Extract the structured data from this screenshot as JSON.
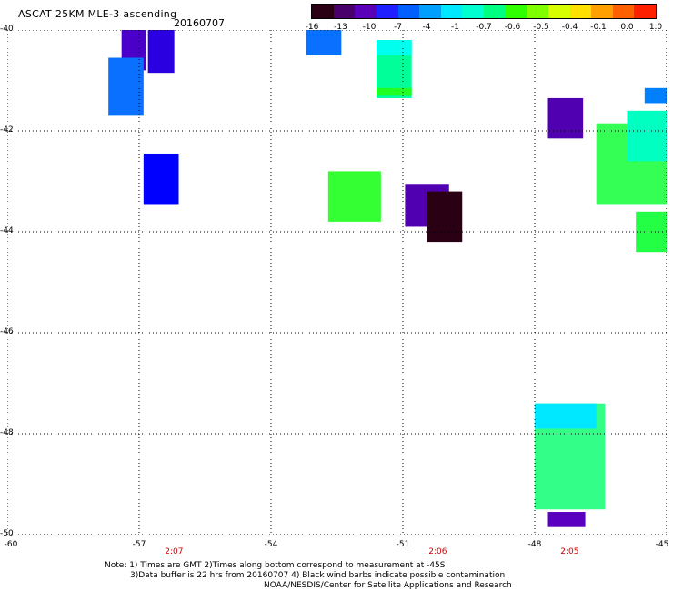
{
  "header": {
    "title": "ASCAT 25KM MLE-3 ascending",
    "date": "20160707"
  },
  "colorbar": {
    "colors": [
      "#2a0014",
      "#4a006a",
      "#5a00b8",
      "#2020ff",
      "#0060ff",
      "#00a0ff",
      "#00e8ff",
      "#00ffd0",
      "#00ff80",
      "#30ff00",
      "#80ff00",
      "#d8ff00",
      "#ffe000",
      "#ffa000",
      "#ff6000",
      "#ff2000"
    ],
    "labels": [
      "-16",
      "-13",
      "-10",
      "-7",
      "-4",
      "-1",
      "-0.7",
      "-0.6",
      "-0.5",
      "-0.4",
      "-0.1",
      "0.0",
      "1.0"
    ]
  },
  "axes": {
    "y_labels": [
      "-40",
      "-42",
      "-44",
      "-46",
      "-48",
      "-50"
    ],
    "x_labels": [
      "-60",
      "-57",
      "-54",
      "-51",
      "-48",
      "-45"
    ],
    "x_range": [
      -60,
      -45
    ],
    "y_range": [
      -40,
      -50
    ]
  },
  "pass_times": [
    {
      "label": "2:07",
      "lon": -56
    },
    {
      "label": "2:06",
      "lon": -50
    },
    {
      "label": "2:05",
      "lon": -47
    }
  ],
  "notes": [
    "Note: 1) Times are GMT 2)Times along bottom correspond to measurement at -45S",
    "3)Data buffer is 22 hrs from 20160707 4) Black wind barbs indicate possible contamination",
    "NOAA/NESDIS/Center for Satellite Applications and Research"
  ],
  "map_data": {
    "lon_range": [
      -60,
      -45
    ],
    "lat_range": [
      -40,
      -50
    ],
    "cells": [
      {
        "lon": -57.4,
        "lat": -40.0,
        "w": 0.55,
        "h": 0.8,
        "color": "#4a00c8"
      },
      {
        "lon": -56.8,
        "lat": -40.0,
        "w": 0.6,
        "h": 0.85,
        "color": "#2a00e0"
      },
      {
        "lon": -57.7,
        "lat": -40.55,
        "w": 0.8,
        "h": 1.15,
        "color": "#0a70ff"
      },
      {
        "lon": -56.9,
        "lat": -42.45,
        "w": 0.8,
        "h": 1.0,
        "color": "#0000ff"
      },
      {
        "lon": -53.2,
        "lat": -40.0,
        "w": 0.8,
        "h": 0.5,
        "color": "#0a70ff"
      },
      {
        "lon": -51.6,
        "lat": -40.2,
        "w": 0.8,
        "h": 1.15,
        "color": "#00ff99"
      },
      {
        "lon": -51.6,
        "lat": -40.2,
        "w": 0.8,
        "h": 0.3,
        "color": "#00ffee"
      },
      {
        "lon": -51.6,
        "lat": -41.15,
        "w": 0.8,
        "h": 0.15,
        "color": "#22ff22"
      },
      {
        "lon": -52.7,
        "lat": -42.8,
        "w": 1.2,
        "h": 1.0,
        "color": "#33ff33"
      },
      {
        "lon": -50.95,
        "lat": -43.05,
        "w": 1.0,
        "h": 0.85,
        "color": "#5000b0"
      },
      {
        "lon": -50.45,
        "lat": -43.2,
        "w": 0.8,
        "h": 1.0,
        "color": "#2a0014"
      },
      {
        "lon": -47.7,
        "lat": -41.35,
        "w": 0.8,
        "h": 0.8,
        "color": "#5000b0"
      },
      {
        "lon": -46.6,
        "lat": -41.85,
        "w": 1.6,
        "h": 1.6,
        "color": "#33ff55"
      },
      {
        "lon": -45.9,
        "lat": -41.6,
        "w": 0.9,
        "h": 1.0,
        "color": "#00ffc0"
      },
      {
        "lon": -45.5,
        "lat": -41.15,
        "w": 0.5,
        "h": 0.3,
        "color": "#0080ff"
      },
      {
        "lon": -45.7,
        "lat": -43.6,
        "w": 0.7,
        "h": 0.8,
        "color": "#22ff44"
      },
      {
        "lon": -48.0,
        "lat": -47.4,
        "w": 1.6,
        "h": 2.1,
        "color": "#33ff88"
      },
      {
        "lon": -48.0,
        "lat": -47.4,
        "w": 1.4,
        "h": 0.5,
        "color": "#00e8ff"
      },
      {
        "lon": -47.7,
        "lat": -49.55,
        "w": 0.85,
        "h": 0.3,
        "color": "#5a00c0"
      }
    ]
  }
}
